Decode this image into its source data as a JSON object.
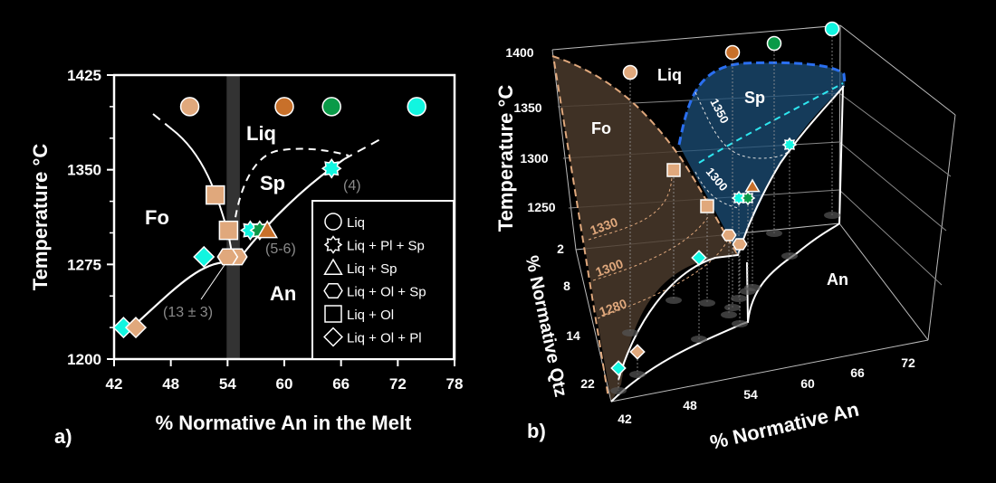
{
  "chart_data": [
    {
      "type": "scatter",
      "panel_label": "a)",
      "xlabel": "% Normative An in the Melt",
      "ylabel": "Temperature °C",
      "xlim": [
        42,
        78
      ],
      "ylim": [
        1200,
        1425
      ],
      "xticks": [
        "42",
        "48",
        "54",
        "60",
        "66",
        "72",
        "78"
      ],
      "yticks": [
        "1200",
        "1275",
        "1350",
        "1425"
      ],
      "field_labels": [
        "Fo",
        "Liq",
        "Sp",
        "An"
      ],
      "annotations": [
        "(4)",
        "(5-6)",
        "(13 ± 3)"
      ],
      "legend": {
        "position": "bottom-right",
        "entries": [
          "Liq",
          "Liq + Pl + Sp",
          "Liq + Sp",
          "Liq + Ol + Sp",
          "Liq + Ol",
          "Liq + Ol + Pl"
        ]
      },
      "colors": {
        "tan": "#e0a87c",
        "orange": "#c8702a",
        "green": "#0a9a48",
        "cyan": "#12f5e0"
      },
      "points": [
        {
          "phase": "Liq",
          "marker": "circle",
          "color": "tan",
          "x": 50,
          "y": 1400
        },
        {
          "phase": "Liq",
          "marker": "circle",
          "color": "orange",
          "x": 60,
          "y": 1400
        },
        {
          "phase": "Liq",
          "marker": "circle",
          "color": "green",
          "x": 65,
          "y": 1400
        },
        {
          "phase": "Liq",
          "marker": "circle",
          "color": "cyan",
          "x": 74,
          "y": 1400
        },
        {
          "phase": "Liq + Ol",
          "marker": "square",
          "color": "tan",
          "x": 52.7,
          "y": 1330
        },
        {
          "phase": "Liq + Ol",
          "marker": "square",
          "color": "tan",
          "x": 54.1,
          "y": 1302
        },
        {
          "phase": "Liq + Ol + Sp",
          "marker": "hexagon",
          "color": "tan",
          "x": 55.0,
          "y": 1281
        },
        {
          "phase": "Liq + Ol + Sp",
          "marker": "hexagon",
          "color": "tan",
          "x": 54.0,
          "y": 1281
        },
        {
          "phase": "Liq + Pl + Sp",
          "marker": "star",
          "color": "cyan",
          "x": 56.4,
          "y": 1302
        },
        {
          "phase": "Liq + Pl + Sp",
          "marker": "star",
          "color": "green",
          "x": 57.4,
          "y": 1302
        },
        {
          "phase": "Liq + Sp",
          "marker": "triangle",
          "color": "orange",
          "x": 58.2,
          "y": 1302
        },
        {
          "phase": "Liq + Pl + Sp",
          "marker": "star",
          "color": "cyan",
          "x": 65,
          "y": 1351
        },
        {
          "phase": "Liq + Ol + Pl",
          "marker": "diamond",
          "color": "cyan",
          "x": 51.5,
          "y": 1281
        },
        {
          "phase": "Liq + Ol + Pl",
          "marker": "diamond",
          "color": "cyan",
          "x": 43,
          "y": 1225
        },
        {
          "phase": "Liq + Ol + Pl",
          "marker": "diamond",
          "color": "tan",
          "x": 44.3,
          "y": 1225
        }
      ],
      "shaded_band": {
        "x": [
          53.9,
          55.3
        ],
        "color": "#333333"
      }
    },
    {
      "type": "scatter3d",
      "panel_label": "b)",
      "xlabel": "% Normative An",
      "ylabel": "% Normative Qtz",
      "zlabel": "Temperature °C",
      "xticks": [
        "42",
        "48",
        "54",
        "60",
        "66",
        "72"
      ],
      "yticks": [
        "2",
        "8",
        "14",
        "22"
      ],
      "zticks": [
        "1250",
        "1300",
        "1350",
        "1400"
      ],
      "field_labels": [
        "Liq",
        "Sp",
        "Fo",
        "An"
      ],
      "contour_labels_sp": [
        "1350",
        "1300"
      ],
      "contour_labels_fo": [
        "1330",
        "1300",
        "1280"
      ],
      "colors": {
        "fo_surface": "#4a3a2c",
        "sp_surface": "#1c4f78",
        "sp_boundary": "#2a6ff0"
      }
    }
  ]
}
